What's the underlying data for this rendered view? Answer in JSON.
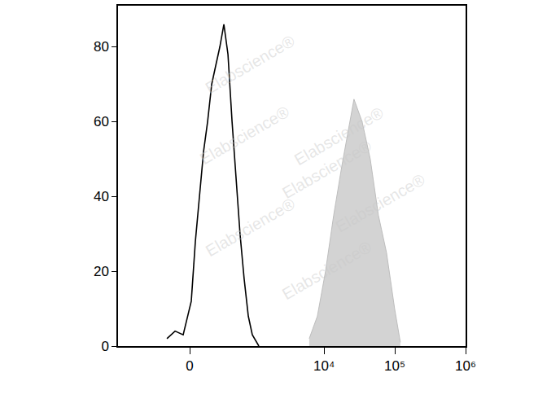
{
  "chart_data": {
    "type": "histogram",
    "watermark": "Elabscience®",
    "grid": false,
    "xlim": [
      -1290,
      1000000
    ],
    "xticks": [
      0,
      {
        "value": 10000,
        "label": "10⁴"
      },
      {
        "value": 100000,
        "label": "10⁵"
      },
      {
        "value": 1000000,
        "label": "10⁶"
      }
    ],
    "ylim": [
      0,
      91
    ],
    "yticks": [
      0,
      20,
      40,
      60,
      80
    ],
    "series": [
      {
        "type": "line",
        "color": "#000000",
        "x": [
          -205,
          -125,
          -54,
          13,
          47,
          82,
          118,
          156,
          197,
          241,
          290,
          343,
          403,
          470,
          543,
          626,
          722,
          833,
          954,
          1187
        ],
        "values": [
          2,
          4,
          3,
          12,
          28,
          40,
          52,
          60,
          70,
          75,
          80,
          86,
          78,
          60,
          45,
          30,
          18,
          8,
          3,
          0
        ]
      },
      {
        "type": "area",
        "color": "#d3d3d3",
        "x": [
          6180,
          8050,
          10500,
          13700,
          17800,
          23200,
          26500,
          34500,
          45000,
          58600,
          76300,
          99400,
          119700
        ],
        "values": [
          2,
          8,
          20,
          35,
          48,
          60,
          66,
          60,
          50,
          35,
          25,
          10,
          1
        ]
      }
    ]
  }
}
